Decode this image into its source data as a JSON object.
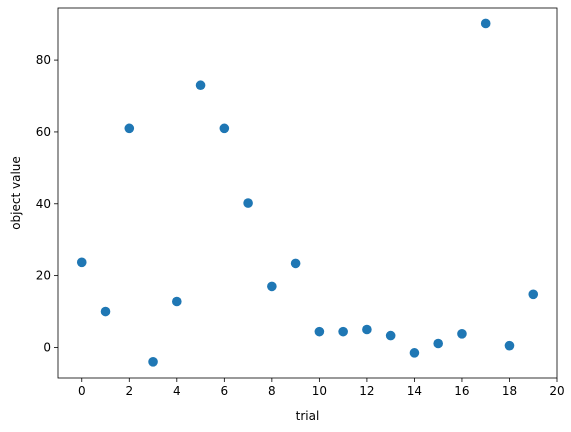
{
  "chart_data": {
    "type": "scatter",
    "title": "",
    "xlabel": "trial",
    "ylabel": "object value",
    "xlim": [
      -1,
      20
    ],
    "ylim": [
      -8.5,
      94.5
    ],
    "xticks": [
      0,
      2,
      4,
      6,
      8,
      10,
      12,
      14,
      16,
      18,
      20
    ],
    "yticks": [
      0,
      20,
      40,
      60,
      80
    ],
    "grid": false,
    "legend": "none",
    "point_color": "#1f77b4",
    "series": [
      {
        "x": [
          0,
          1,
          2,
          3,
          4,
          5,
          6,
          7,
          8,
          9,
          10,
          11,
          12,
          13,
          14,
          15,
          16,
          17,
          18,
          19
        ],
        "y": [
          23.7,
          10.0,
          61.0,
          -4.0,
          12.8,
          73.0,
          61.0,
          40.2,
          17.0,
          23.4,
          4.4,
          4.4,
          5.0,
          3.3,
          -1.5,
          1.1,
          3.8,
          90.2,
          0.5,
          14.8
        ]
      }
    ]
  }
}
